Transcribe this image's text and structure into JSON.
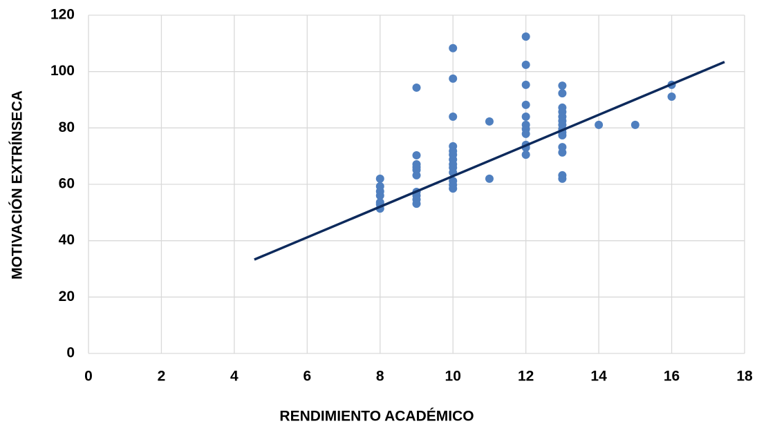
{
  "chart_data": {
    "type": "scatter",
    "xlabel": "RENDIMIENTO ACADÉMICO",
    "ylabel": "MOTIVACIÓN EXTRÍNSECA",
    "series": [
      {
        "color": "#4f7fbf",
        "x": [
          8,
          8,
          8,
          8,
          8,
          8,
          8,
          9,
          9,
          9,
          9,
          9,
          9,
          9,
          9,
          9,
          9,
          10,
          10,
          10,
          10,
          10,
          10,
          10,
          10,
          10,
          10,
          10,
          10,
          10,
          11,
          11,
          12,
          12,
          12,
          12,
          12,
          12,
          12,
          12,
          12,
          12,
          12,
          13,
          13,
          13,
          13,
          13,
          13,
          13,
          13,
          13,
          13,
          13,
          13,
          13,
          13,
          14,
          15,
          16,
          16
        ],
        "values": [
          62,
          59.3,
          57.5,
          56,
          53.6,
          52.9,
          51.4,
          94.3,
          70.3,
          67.1,
          66.1,
          65.1,
          63.2,
          57.3,
          56,
          54.6,
          53.1,
          108.3,
          97.5,
          84,
          73.5,
          71.8,
          70.5,
          68.8,
          67.1,
          65.9,
          64.2,
          61.2,
          59.8,
          58.5,
          82.3,
          62,
          112.4,
          102.4,
          95.3,
          88.2,
          84,
          81.1,
          79.6,
          77.9,
          74,
          73,
          70.5,
          95,
          92.3,
          87.2,
          85.7,
          84,
          82.5,
          81.1,
          79.6,
          78.4,
          77.4,
          73.2,
          71.3,
          63.2,
          62,
          81.1,
          81.1,
          95.3,
          91.1
        ]
      }
    ],
    "trendline": {
      "color": "#0d2a5c",
      "x": [
        4.55,
        17.45
      ],
      "values": [
        33.3,
        103.4
      ]
    },
    "xlim": [
      0,
      18
    ],
    "xticks": [
      0,
      2,
      4,
      6,
      8,
      10,
      12,
      14,
      16,
      18
    ],
    "ylim": [
      0,
      120
    ],
    "yticks": [
      0,
      20,
      40,
      60,
      80,
      100,
      120
    ],
    "grid": true
  }
}
